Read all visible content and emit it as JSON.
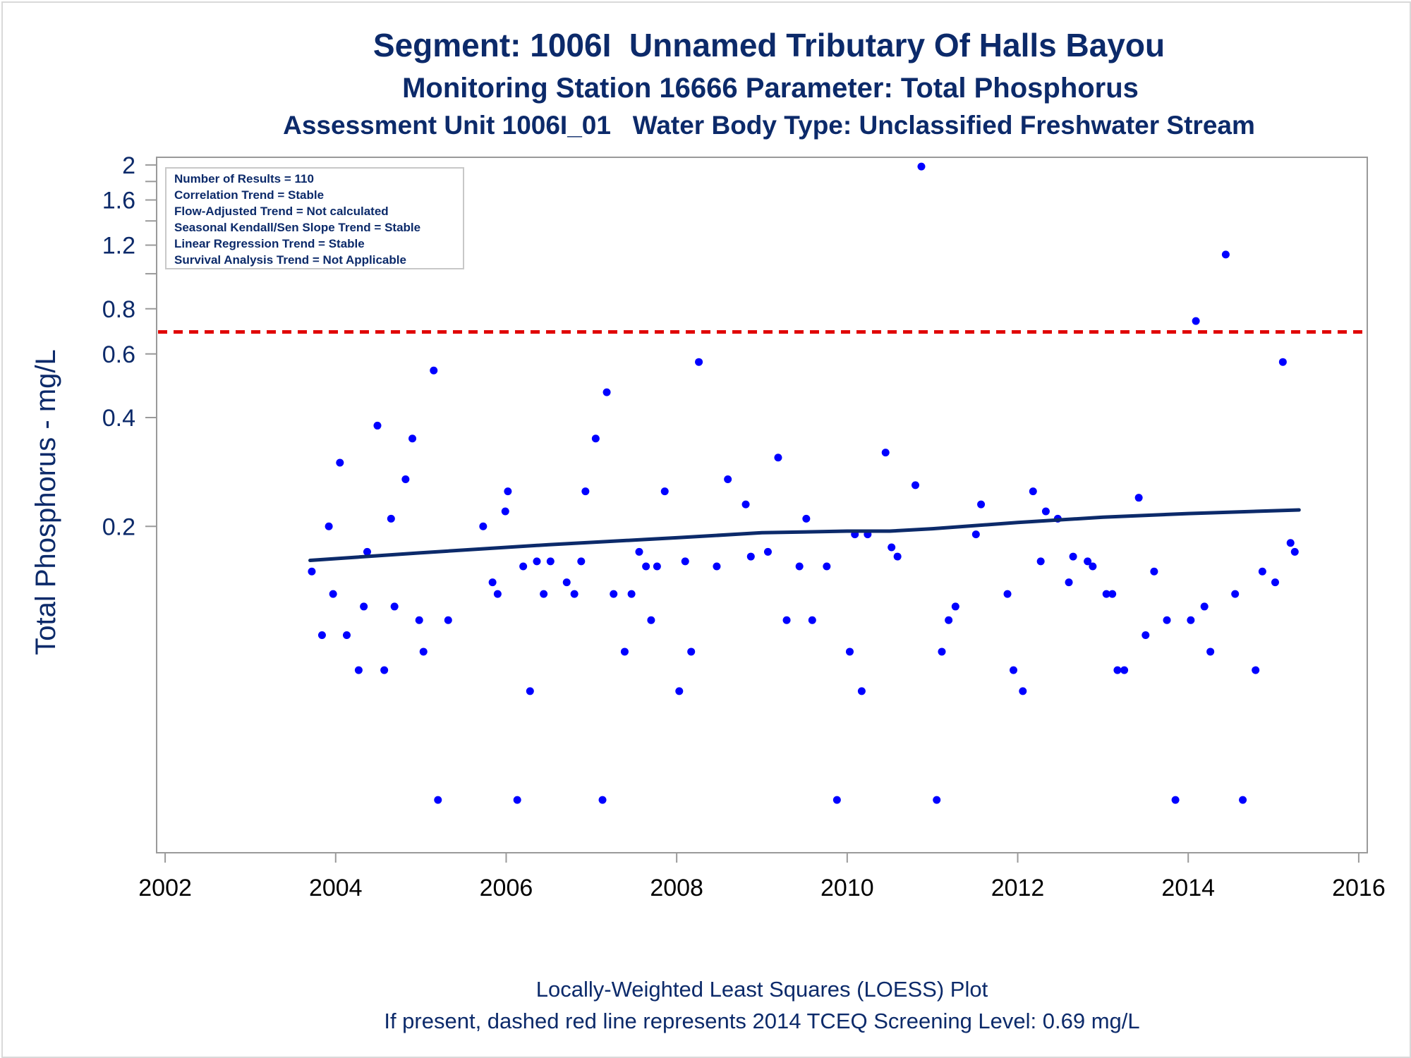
{
  "chart_data": {
    "type": "scatter",
    "title": "Segment: 1006I  Unnamed Tributary Of Halls Bayou",
    "subtitle": "Monitoring Station 16666 Parameter: Total Phosphorus",
    "subtitle2": "Assessment Unit 1006I_01   Water Body Type: Unclassified Freshwater Stream",
    "ylabel": "Total Phosphorus - mg/L",
    "xlabel": "",
    "footnote1": "Locally-Weighted Least Squares (LOESS) Plot",
    "footnote2": "If present, dashed red line represents 2014 TCEQ Screening Level: 0.69 mg/L",
    "yscale": "log",
    "ylim": [
      0.025,
      2.1
    ],
    "xlim": [
      2001.9,
      2016.1
    ],
    "x_ticks": [
      2002,
      2004,
      2006,
      2008,
      2010,
      2012,
      2014,
      2016
    ],
    "y_tick_labels": [
      {
        "value": 2,
        "label": "2"
      },
      {
        "value": 1.6,
        "label": "1.6"
      },
      {
        "value": 1.2,
        "label": "1.2"
      },
      {
        "value": 0.8,
        "label": "0.8"
      },
      {
        "value": 0.6,
        "label": "0.6"
      },
      {
        "value": 0.4,
        "label": "0.4"
      },
      {
        "value": 0.2,
        "label": "0.2"
      }
    ],
    "y_minor_ticks": [
      1.8,
      1.4,
      1.0
    ],
    "stats_box": {
      "position": "top-left",
      "lines": [
        "Number of Results = 110",
        "Correlation Trend = Stable",
        "Flow-Adjusted Trend = Not calculated",
        "Seasonal Kendall/Sen Slope Trend = Stable",
        "Linear Regression Trend = Stable",
        "Survival Analysis Trend = Not Applicable"
      ]
    },
    "screening_level": {
      "value": 0.69,
      "color": "#e00000",
      "style": "dashed"
    },
    "loess": {
      "color": "#0c2a6a",
      "x": [
        2003.7,
        2005.0,
        2006.5,
        2008.0,
        2009.0,
        2010.0,
        2010.5,
        2011.0,
        2012.0,
        2013.0,
        2014.0,
        2015.3
      ],
      "y": [
        0.161,
        0.169,
        0.178,
        0.186,
        0.192,
        0.194,
        0.194,
        0.197,
        0.205,
        0.212,
        0.217,
        0.222
      ]
    },
    "series": [
      {
        "marker_color": "#0000ff",
        "points": [
          {
            "x": 2003.72,
            "y": 0.15
          },
          {
            "x": 2003.84,
            "y": 0.1
          },
          {
            "x": 2003.92,
            "y": 0.2
          },
          {
            "x": 2003.97,
            "y": 0.13
          },
          {
            "x": 2004.05,
            "y": 0.3
          },
          {
            "x": 2004.13,
            "y": 0.1
          },
          {
            "x": 2004.27,
            "y": 0.08
          },
          {
            "x": 2004.33,
            "y": 0.12
          },
          {
            "x": 2004.37,
            "y": 0.17
          },
          {
            "x": 2004.49,
            "y": 0.38
          },
          {
            "x": 2004.57,
            "y": 0.08
          },
          {
            "x": 2004.65,
            "y": 0.21
          },
          {
            "x": 2004.69,
            "y": 0.12
          },
          {
            "x": 2004.82,
            "y": 0.27
          },
          {
            "x": 2004.9,
            "y": 0.35
          },
          {
            "x": 2004.98,
            "y": 0.11
          },
          {
            "x": 2005.03,
            "y": 0.09
          },
          {
            "x": 2005.15,
            "y": 0.54
          },
          {
            "x": 2005.2,
            "y": 0.035
          },
          {
            "x": 2005.32,
            "y": 0.11
          },
          {
            "x": 2005.73,
            "y": 0.2
          },
          {
            "x": 2005.84,
            "y": 0.14
          },
          {
            "x": 2005.9,
            "y": 0.13
          },
          {
            "x": 2005.99,
            "y": 0.22
          },
          {
            "x": 2006.02,
            "y": 0.25
          },
          {
            "x": 2006.13,
            "y": 0.035
          },
          {
            "x": 2006.2,
            "y": 0.155
          },
          {
            "x": 2006.28,
            "y": 0.07
          },
          {
            "x": 2006.36,
            "y": 0.16
          },
          {
            "x": 2006.44,
            "y": 0.13
          },
          {
            "x": 2006.52,
            "y": 0.16
          },
          {
            "x": 2006.71,
            "y": 0.14
          },
          {
            "x": 2006.8,
            "y": 0.13
          },
          {
            "x": 2006.88,
            "y": 0.16
          },
          {
            "x": 2006.93,
            "y": 0.25
          },
          {
            "x": 2007.05,
            "y": 0.35
          },
          {
            "x": 2007.13,
            "y": 0.035
          },
          {
            "x": 2007.18,
            "y": 0.47
          },
          {
            "x": 2007.26,
            "y": 0.13
          },
          {
            "x": 2007.39,
            "y": 0.09
          },
          {
            "x": 2007.47,
            "y": 0.13
          },
          {
            "x": 2007.56,
            "y": 0.17
          },
          {
            "x": 2007.64,
            "y": 0.155
          },
          {
            "x": 2007.7,
            "y": 0.11
          },
          {
            "x": 2007.77,
            "y": 0.155
          },
          {
            "x": 2007.86,
            "y": 0.25
          },
          {
            "x": 2008.03,
            "y": 0.07
          },
          {
            "x": 2008.1,
            "y": 0.16
          },
          {
            "x": 2008.17,
            "y": 0.09
          },
          {
            "x": 2008.26,
            "y": 0.57
          },
          {
            "x": 2008.47,
            "y": 0.155
          },
          {
            "x": 2008.6,
            "y": 0.27
          },
          {
            "x": 2008.81,
            "y": 0.23
          },
          {
            "x": 2008.87,
            "y": 0.165
          },
          {
            "x": 2009.07,
            "y": 0.17
          },
          {
            "x": 2009.19,
            "y": 0.31
          },
          {
            "x": 2009.29,
            "y": 0.11
          },
          {
            "x": 2009.44,
            "y": 0.155
          },
          {
            "x": 2009.52,
            "y": 0.21
          },
          {
            "x": 2009.59,
            "y": 0.11
          },
          {
            "x": 2009.76,
            "y": 0.155
          },
          {
            "x": 2009.88,
            "y": 0.035
          },
          {
            "x": 2010.03,
            "y": 0.09
          },
          {
            "x": 2010.09,
            "y": 0.19
          },
          {
            "x": 2010.17,
            "y": 0.07
          },
          {
            "x": 2010.24,
            "y": 0.19
          },
          {
            "x": 2010.45,
            "y": 0.32
          },
          {
            "x": 2010.52,
            "y": 0.175
          },
          {
            "x": 2010.59,
            "y": 0.165
          },
          {
            "x": 2010.8,
            "y": 0.26
          },
          {
            "x": 2010.87,
            "y": 1.98
          },
          {
            "x": 2011.05,
            "y": 0.035
          },
          {
            "x": 2011.11,
            "y": 0.09
          },
          {
            "x": 2011.19,
            "y": 0.11
          },
          {
            "x": 2011.27,
            "y": 0.12
          },
          {
            "x": 2011.51,
            "y": 0.19
          },
          {
            "x": 2011.57,
            "y": 0.23
          },
          {
            "x": 2011.88,
            "y": 0.13
          },
          {
            "x": 2011.95,
            "y": 0.08
          },
          {
            "x": 2012.06,
            "y": 0.07
          },
          {
            "x": 2012.18,
            "y": 0.25
          },
          {
            "x": 2012.27,
            "y": 0.16
          },
          {
            "x": 2012.33,
            "y": 0.22
          },
          {
            "x": 2012.47,
            "y": 0.21
          },
          {
            "x": 2012.6,
            "y": 0.14
          },
          {
            "x": 2012.65,
            "y": 0.165
          },
          {
            "x": 2012.82,
            "y": 0.16
          },
          {
            "x": 2012.88,
            "y": 0.155
          },
          {
            "x": 2013.04,
            "y": 0.13
          },
          {
            "x": 2013.11,
            "y": 0.13
          },
          {
            "x": 2013.17,
            "y": 0.08
          },
          {
            "x": 2013.25,
            "y": 0.08
          },
          {
            "x": 2013.42,
            "y": 0.24
          },
          {
            "x": 2013.5,
            "y": 0.1
          },
          {
            "x": 2013.6,
            "y": 0.15
          },
          {
            "x": 2013.75,
            "y": 0.11
          },
          {
            "x": 2013.85,
            "y": 0.035
          },
          {
            "x": 2014.03,
            "y": 0.11
          },
          {
            "x": 2014.09,
            "y": 0.74
          },
          {
            "x": 2014.19,
            "y": 0.12
          },
          {
            "x": 2014.26,
            "y": 0.09
          },
          {
            "x": 2014.44,
            "y": 1.13
          },
          {
            "x": 2014.55,
            "y": 0.13
          },
          {
            "x": 2014.64,
            "y": 0.035
          },
          {
            "x": 2014.79,
            "y": 0.08
          },
          {
            "x": 2014.87,
            "y": 0.15
          },
          {
            "x": 2015.02,
            "y": 0.14
          },
          {
            "x": 2015.11,
            "y": 0.57
          },
          {
            "x": 2015.2,
            "y": 0.18
          },
          {
            "x": 2015.25,
            "y": 0.17
          }
        ]
      }
    ]
  }
}
